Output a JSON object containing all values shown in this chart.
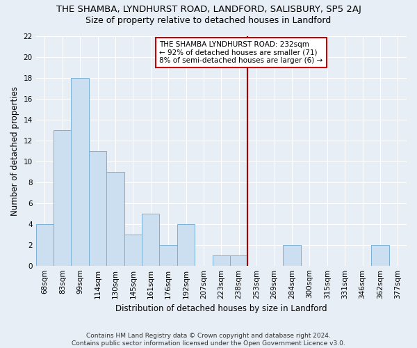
{
  "title": "THE SHAMBA, LYNDHURST ROAD, LANDFORD, SALISBURY, SP5 2AJ",
  "subtitle": "Size of property relative to detached houses in Landford",
  "xlabel": "Distribution of detached houses by size in Landford",
  "ylabel": "Number of detached properties",
  "categories": [
    "68sqm",
    "83sqm",
    "99sqm",
    "114sqm",
    "130sqm",
    "145sqm",
    "161sqm",
    "176sqm",
    "192sqm",
    "207sqm",
    "223sqm",
    "238sqm",
    "253sqm",
    "269sqm",
    "284sqm",
    "300sqm",
    "315sqm",
    "331sqm",
    "346sqm",
    "362sqm",
    "377sqm"
  ],
  "values": [
    4,
    13,
    18,
    11,
    9,
    3,
    5,
    2,
    4,
    0,
    1,
    1,
    0,
    0,
    2,
    0,
    0,
    0,
    0,
    2,
    0
  ],
  "bar_color": "#ccdff0",
  "bar_edge_color": "#7ab0d4",
  "marker_index": 11.5,
  "marker_color": "#aa0000",
  "annotation_text": "THE SHAMBA LYNDHURST ROAD: 232sqm\n← 92% of detached houses are smaller (71)\n8% of semi-detached houses are larger (6) →",
  "annotation_box_color": "#cc0000",
  "ylim": [
    0,
    22
  ],
  "yticks": [
    0,
    2,
    4,
    6,
    8,
    10,
    12,
    14,
    16,
    18,
    20,
    22
  ],
  "footer": "Contains HM Land Registry data © Crown copyright and database right 2024.\nContains public sector information licensed under the Open Government Licence v3.0.",
  "bg_color": "#e8eef5",
  "plot_bg_color": "#e8eef5",
  "grid_color": "#ffffff",
  "title_fontsize": 9.5,
  "subtitle_fontsize": 9,
  "axis_label_fontsize": 8.5,
  "tick_fontsize": 7.5,
  "annotation_fontsize": 7.5
}
